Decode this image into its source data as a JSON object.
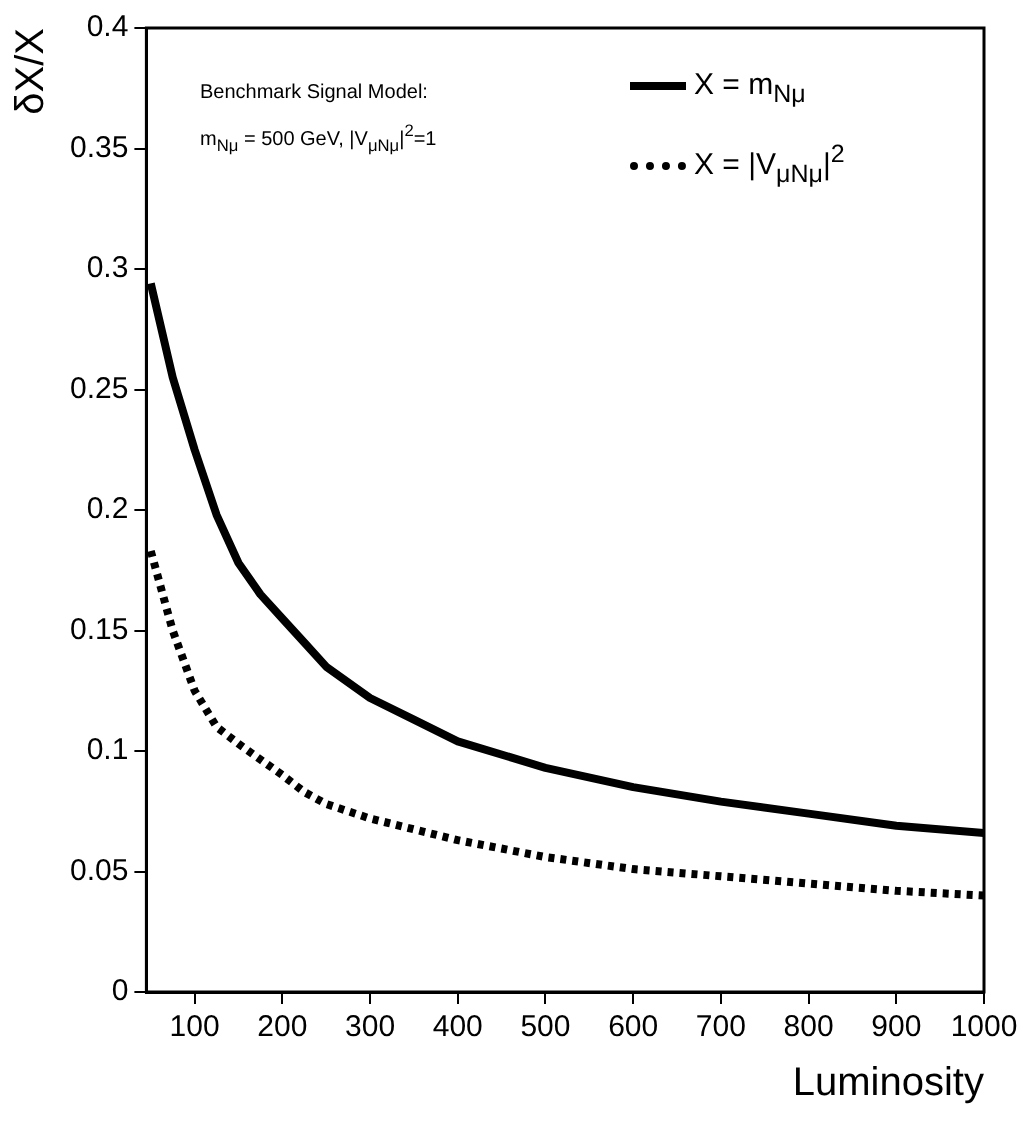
{
  "chart_data": {
    "type": "line",
    "xlabel": "Luminosity",
    "ylabel": "δX/X",
    "xlim": [
      45,
      1000
    ],
    "xticks": [
      100,
      200,
      300,
      400,
      500,
      600,
      700,
      800,
      900,
      1000
    ],
    "ylim": [
      0,
      0.4
    ],
    "yticks": [
      0,
      0.05,
      0.1,
      0.15,
      0.2,
      0.25,
      0.3,
      0.35,
      0.4
    ],
    "grid": false,
    "legend": "top right",
    "marker": "none",
    "annotations": [
      "Benchmark Signal Model:",
      "m$_{Nμ}$ = 500 GeV, |V$_{μNμ}$|$^{2}$=1"
    ],
    "series": [
      {
        "name": "X = m$_{Nμ}$",
        "color": "#000000",
        "line_style": "solid",
        "x": [
          50,
          75,
          100,
          125,
          150,
          175,
          200,
          225,
          250,
          300,
          350,
          400,
          500,
          600,
          700,
          800,
          900,
          1000
        ],
        "values": [
          0.294,
          0.255,
          0.225,
          0.198,
          0.178,
          0.165,
          0.155,
          0.145,
          0.135,
          0.122,
          0.113,
          0.104,
          0.093,
          0.085,
          0.079,
          0.074,
          0.069,
          0.066
        ]
      },
      {
        "name": "X = |V$_{μNμ}$|$^{2}$",
        "color": "#000000",
        "line_style": "dotted",
        "x": [
          50,
          75,
          100,
          125,
          150,
          200,
          225,
          250,
          300,
          400,
          500,
          600,
          700,
          800,
          900,
          1000
        ],
        "values": [
          0.183,
          0.15,
          0.125,
          0.11,
          0.103,
          0.09,
          0.083,
          0.078,
          0.072,
          0.063,
          0.056,
          0.051,
          0.048,
          0.045,
          0.042,
          0.04
        ]
      }
    ]
  }
}
